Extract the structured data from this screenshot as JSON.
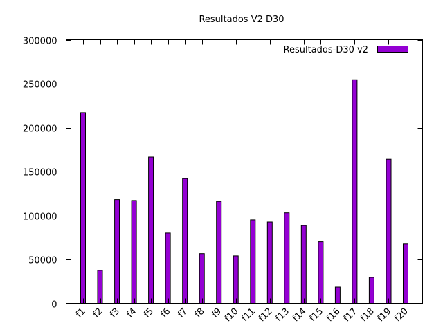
{
  "chart_data": {
    "type": "bar",
    "title": "Resultados V2 D30",
    "xlabel": "",
    "ylabel": "",
    "ylim": [
      0,
      300000
    ],
    "yticks": [
      0,
      50000,
      100000,
      150000,
      200000,
      250000,
      300000
    ],
    "ytick_labels": [
      "0",
      "50000",
      "100000",
      "150000",
      "200000",
      "250000",
      "300000"
    ],
    "categories": [
      "f1",
      "f2",
      "f3",
      "f4",
      "f5",
      "f6",
      "f7",
      "f8",
      "f9",
      "f10",
      "f11",
      "f12",
      "f13",
      "f14",
      "f15",
      "f16",
      "f17",
      "f18",
      "f19",
      "f20"
    ],
    "series": [
      {
        "name": "Resultados-D30 v2",
        "color": "#9400d3",
        "values": [
          217000,
          37500,
          118000,
          117000,
          166500,
          80000,
          142000,
          56500,
          116000,
          54000,
          95000,
          92500,
          103000,
          88500,
          70000,
          18500,
          254500,
          29500,
          164000,
          67500
        ]
      }
    ],
    "legend_position": "top-right",
    "grid": false
  }
}
